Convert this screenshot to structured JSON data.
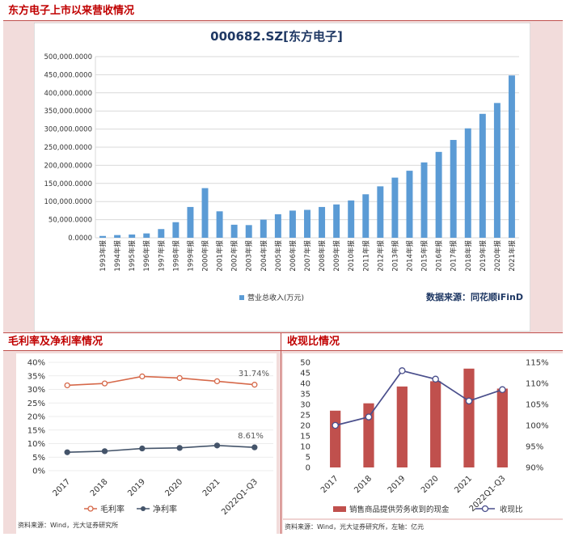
{
  "sections": {
    "top_title": "东方电子上市以来营收情况",
    "left_title": "毛利率及净利率情况",
    "right_title": "收现比情况"
  },
  "colors": {
    "title_red": "#c00000",
    "panel_bg": "#f2dcdb",
    "bar_blue": "#5b9bd5",
    "bar_red": "#c0504d",
    "line_orange": "#d6694a",
    "line_navy": "#44546a",
    "line_purple": "#4a4f8c"
  },
  "chart_data": [
    {
      "type": "bar",
      "title": "000682.SZ[东方电子]",
      "categories": [
        "1993年报",
        "1994年报",
        "1995年报",
        "1996年报",
        "1997年报",
        "1998年报",
        "1999年报",
        "2000年报",
        "2001年报",
        "2002年报",
        "2003年报",
        "2004年报",
        "2005年报",
        "2006年报",
        "2007年报",
        "2008年报",
        "2009年报",
        "2010年报",
        "2011年报",
        "2012年报",
        "2013年报",
        "2014年报",
        "2015年报",
        "2016年报",
        "2017年报",
        "2018年报",
        "2019年报",
        "2020年报",
        "2021年报"
      ],
      "series": [
        {
          "name": "营业总收入(万元)",
          "values": [
            5000,
            7500,
            9000,
            12000,
            24000,
            43000,
            85000,
            137000,
            73000,
            36000,
            35000,
            50000,
            65000,
            75000,
            77000,
            85000,
            92000,
            103000,
            120000,
            142000,
            166000,
            185000,
            208000,
            237000,
            270000,
            302000,
            342000,
            372000,
            448000
          ]
        }
      ],
      "yticks": [
        "500,000.0000",
        "450,000.0000",
        "400,000.0000",
        "350,000.0000",
        "300,000.0000",
        "250,000.0000",
        "200,000.0000",
        "150,000.0000",
        "100,000.0000",
        "50,000.0000",
        "0.0000"
      ],
      "ylim": [
        0,
        500000
      ],
      "legend": "营业总收入(万元)",
      "source": "数据来源：同花顺iFinD"
    },
    {
      "type": "line",
      "categories": [
        "2017",
        "2018",
        "2019",
        "2020",
        "2021",
        "2022Q1-Q3"
      ],
      "series": [
        {
          "name": "毛利率",
          "values": [
            31.5,
            32.2,
            34.8,
            34.2,
            33.0,
            31.74
          ]
        },
        {
          "name": "净利率",
          "values": [
            6.8,
            7.2,
            8.2,
            8.4,
            9.3,
            8.61
          ]
        }
      ],
      "yticks": [
        "40%",
        "35%",
        "30%",
        "25%",
        "20%",
        "15%",
        "10%",
        "5%",
        "0%"
      ],
      "ylim": [
        0,
        40
      ],
      "labels": {
        "gross_last": "31.74%",
        "net_last": "8.61%"
      },
      "source": "资料来源：Wind，光大证券研究所"
    },
    {
      "type": "bar",
      "categories": [
        "2017",
        "2018",
        "2019",
        "2020",
        "2021",
        "2022Q1-Q3"
      ],
      "series": [
        {
          "name": "销售商品提供劳务收到的现金",
          "axis": "left",
          "values": [
            27,
            30.5,
            38.5,
            41,
            47,
            37.5
          ]
        },
        {
          "name": "收现比",
          "axis": "right",
          "type": "line",
          "values": [
            100.0,
            102.0,
            113.0,
            111.0,
            105.8,
            108.5
          ]
        }
      ],
      "yticks_left": [
        "50",
        "45",
        "40",
        "35",
        "30",
        "25",
        "20",
        "15",
        "10",
        "5",
        "0"
      ],
      "yticks_right": [
        "115%",
        "110%",
        "105%",
        "100%",
        "95%",
        "90%"
      ],
      "ylim_left": [
        0,
        50
      ],
      "ylim_right": [
        90,
        115
      ],
      "source": "资料来源：Wind，光大证券研究所，左轴：亿元"
    }
  ]
}
